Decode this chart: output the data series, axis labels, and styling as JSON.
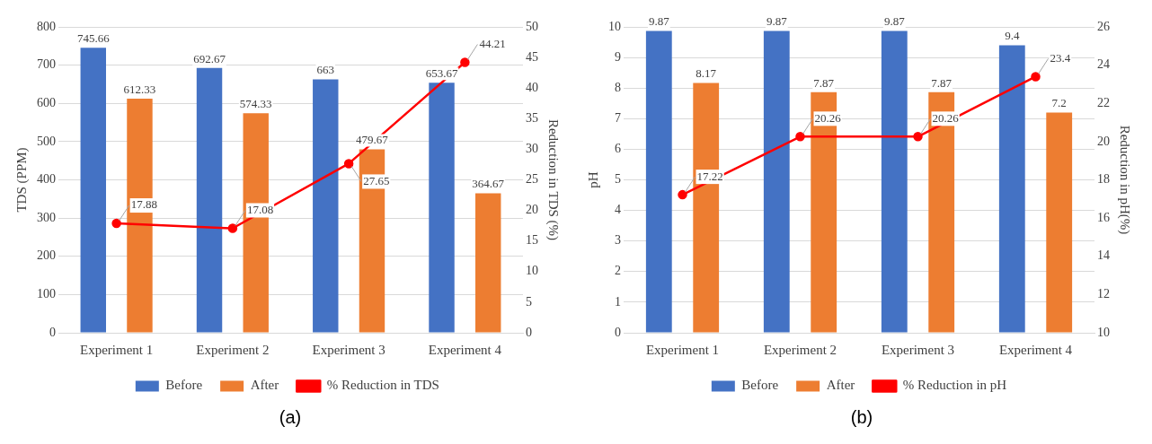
{
  "chart_data": [
    {
      "type": "bar",
      "categories": [
        "Experiment 1",
        "Experiment 2",
        "Experiment 3",
        "Experiment 4"
      ],
      "ylabel": "TDS (PPM)",
      "y2label": "Reduction in TDS (%)",
      "ylim": [
        0,
        800
      ],
      "yticks": [
        0,
        100,
        200,
        300,
        400,
        500,
        600,
        700,
        800
      ],
      "y2lim": [
        0,
        50
      ],
      "y2ticks": [
        0,
        5,
        10,
        15,
        20,
        25,
        30,
        35,
        40,
        45,
        50
      ],
      "grid": "y",
      "legend": "bottom",
      "data_labels": true,
      "annotations": [
        "(a)"
      ],
      "series": [
        {
          "name": "Before",
          "color": "#4472c4",
          "values": [
            745.66,
            692.67,
            663,
            653.67
          ]
        },
        {
          "name": "After",
          "color": "#ed7d31",
          "values": [
            612.33,
            574.33,
            479.67,
            364.67
          ]
        },
        {
          "name": "% Reduction in TDS",
          "type": "line",
          "axis": "y2",
          "color": "#ff0000",
          "marker": "circle",
          "values": [
            17.88,
            17.08,
            27.65,
            44.21
          ]
        }
      ]
    },
    {
      "type": "bar",
      "categories": [
        "Experiment 1",
        "Experiment 2",
        "Experiment 3",
        "Experiment 4"
      ],
      "ylabel": "pH",
      "y2label": "Reduction in pH(%)",
      "ylim": [
        0,
        10
      ],
      "yticks": [
        0,
        1,
        2,
        3,
        4,
        5,
        6,
        7,
        8,
        9,
        10
      ],
      "y2lim": [
        10,
        26
      ],
      "y2ticks": [
        10,
        12,
        14,
        16,
        18,
        20,
        22,
        24,
        26
      ],
      "grid": "y",
      "legend": "bottom",
      "data_labels": true,
      "annotations": [
        "(b)"
      ],
      "series": [
        {
          "name": "Before",
          "color": "#4472c4",
          "values": [
            9.87,
            9.87,
            9.87,
            9.4
          ]
        },
        {
          "name": "After",
          "color": "#ed7d31",
          "values": [
            8.17,
            7.87,
            7.87,
            7.2
          ]
        },
        {
          "name": "% Reduction in pH",
          "type": "line",
          "axis": "y2",
          "color": "#ff0000",
          "marker": "circle",
          "values": [
            17.22,
            20.26,
            20.26,
            23.4
          ]
        }
      ]
    }
  ]
}
